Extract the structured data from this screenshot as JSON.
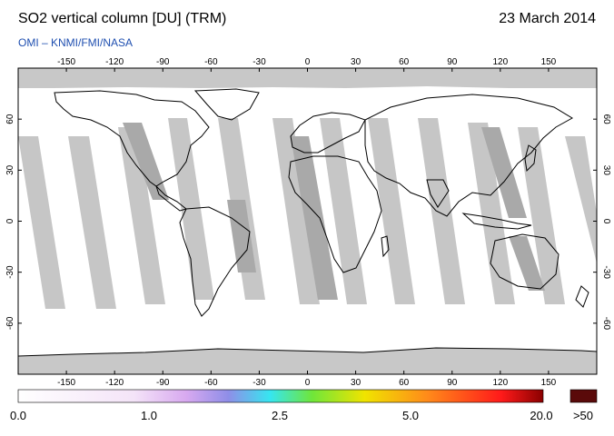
{
  "title": "SO2 vertical column [DU] (TRM)",
  "date": "23 March 2014",
  "source": "OMI  –  KNMI/FMI/NASA",
  "map": {
    "lon_ticks": [
      -150,
      -120,
      -90,
      -60,
      -30,
      0,
      30,
      60,
      90,
      120,
      150
    ],
    "lat_ticks": [
      60,
      30,
      0,
      -30,
      -60
    ],
    "lon_range": [
      -180,
      180
    ],
    "lat_range": [
      -90,
      90
    ],
    "background": "#ffffff",
    "no_data_color": "#c8c8c8",
    "swath_color": "#bdbdbd",
    "coastline_color": "#000000"
  },
  "colorbar": {
    "labels": [
      "0.0",
      "1.0",
      "2.5",
      "5.0",
      "20.0"
    ],
    "overflow_label": ">50",
    "overflow_color": "#5a0a0a",
    "stops": [
      "#ffffff",
      "#f4e4f8",
      "#d8a9f0",
      "#8f8ee8",
      "#36e6f0",
      "#6fe63a",
      "#f0e400",
      "#ff8a1a",
      "#ff1a1a",
      "#8a0000"
    ]
  }
}
